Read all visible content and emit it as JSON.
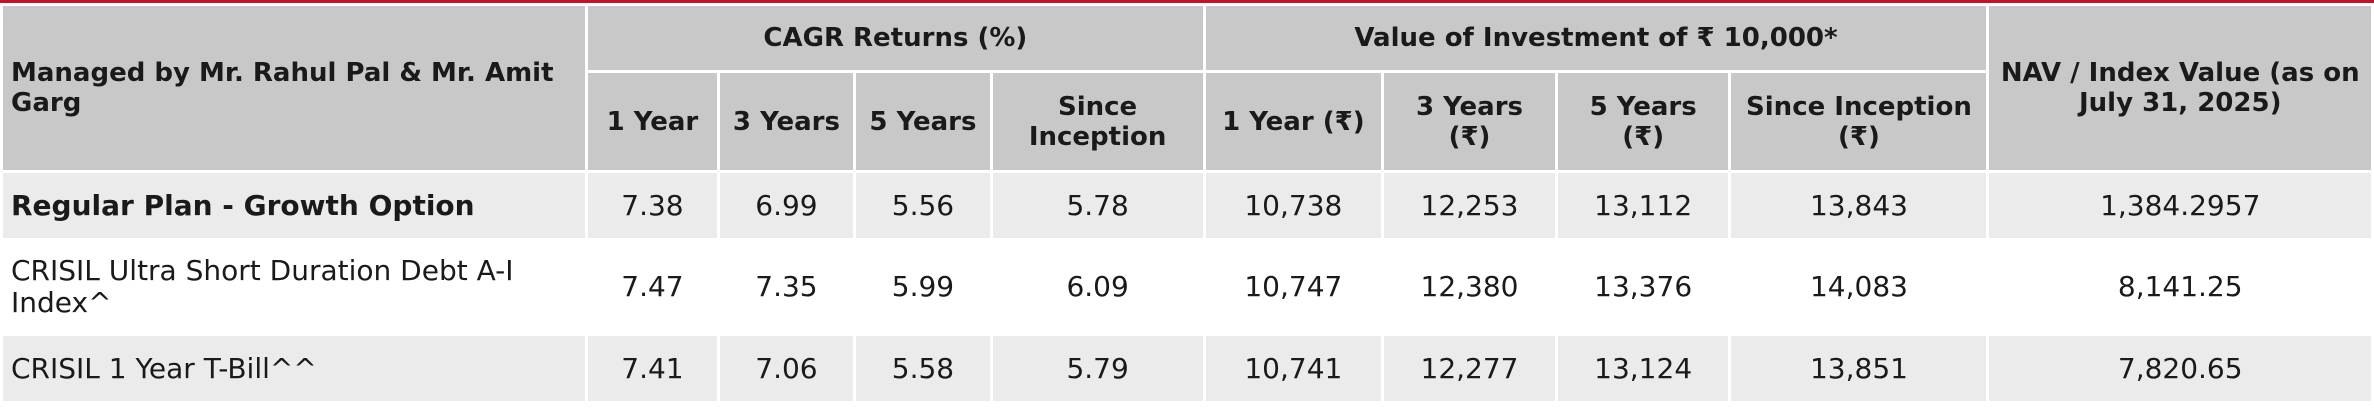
{
  "table": {
    "managed_by_header": "Managed by Mr. Rahul Pal & Mr. Amit Garg",
    "cagr_group_header": "CAGR Returns (%)",
    "value_group_header": "Value of Investment of ₹ 10,000*",
    "nav_header": "NAV / Index Value (as on July 31, 2025)",
    "cagr_columns": [
      "1 Year",
      "3 Years",
      "5 Years",
      "Since Inception"
    ],
    "value_columns": [
      "1 Year (₹)",
      "3 Years (₹)",
      "5 Years (₹)",
      "Since Inception (₹)"
    ],
    "rows": [
      {
        "label": "Regular Plan - Growth Option",
        "cagr": [
          "7.38",
          "6.99",
          "5.56",
          "5.78"
        ],
        "value": [
          "10,738",
          "12,253",
          "13,112",
          "13,843"
        ],
        "nav": "1,384.2957"
      },
      {
        "label": "CRISIL Ultra Short Duration Debt A-I Index^",
        "cagr": [
          "7.47",
          "7.35",
          "5.99",
          "6.09"
        ],
        "value": [
          "10,747",
          "12,380",
          "13,376",
          "14,083"
        ],
        "nav": "8,141.25"
      },
      {
        "label": "CRISIL 1 Year T-Bill^^",
        "cagr": [
          "7.41",
          "7.06",
          "5.58",
          "5.79"
        ],
        "value": [
          "10,741",
          "12,277",
          "13,124",
          "13,851"
        ],
        "nav": "7,820.65"
      }
    ]
  }
}
